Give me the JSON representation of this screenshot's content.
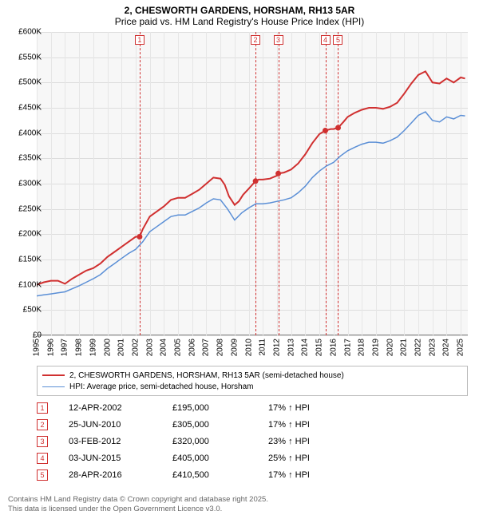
{
  "title": {
    "line1": "2, CHESWORTH GARDENS, HORSHAM, RH13 5AR",
    "line2": "Price paid vs. HM Land Registry's House Price Index (HPI)"
  },
  "chart": {
    "type": "line",
    "background_color": "#f7f7f7",
    "grid_color": "#dddddd",
    "vgrid_color": "#e6e6e6",
    "axis_color": "#888888",
    "y": {
      "min": 0,
      "max": 600000,
      "step": 50000,
      "labels": [
        "£0",
        "£50K",
        "£100K",
        "£150K",
        "£200K",
        "£250K",
        "£300K",
        "£350K",
        "£400K",
        "£450K",
        "£500K",
        "£550K",
        "£600K"
      ]
    },
    "x": {
      "min": 1995,
      "max": 2025.5,
      "labels": [
        "1995",
        "1996",
        "1997",
        "1998",
        "1999",
        "2000",
        "2001",
        "2002",
        "2003",
        "2004",
        "2005",
        "2006",
        "2007",
        "2008",
        "2009",
        "2010",
        "2011",
        "2012",
        "2013",
        "2014",
        "2015",
        "2016",
        "2017",
        "2018",
        "2019",
        "2020",
        "2021",
        "2022",
        "2023",
        "2024",
        "2025"
      ],
      "label_fontsize": 10
    },
    "series": [
      {
        "id": "property",
        "label": "2, CHESWORTH GARDENS, HORSHAM, RH13 5AR (semi-detached house)",
        "color": "#d03030",
        "width": 2,
        "data": [
          [
            1995,
            100000
          ],
          [
            1995.5,
            105000
          ],
          [
            1996,
            108000
          ],
          [
            1996.5,
            108000
          ],
          [
            1997,
            102000
          ],
          [
            1997.5,
            112000
          ],
          [
            1998,
            120000
          ],
          [
            1998.5,
            128000
          ],
          [
            1999,
            133000
          ],
          [
            1999.5,
            142000
          ],
          [
            2000,
            155000
          ],
          [
            2000.5,
            165000
          ],
          [
            2001,
            175000
          ],
          [
            2001.5,
            185000
          ],
          [
            2002,
            195000
          ],
          [
            2002.28,
            195000
          ],
          [
            2002.5,
            210000
          ],
          [
            2003,
            235000
          ],
          [
            2003.5,
            245000
          ],
          [
            2004,
            255000
          ],
          [
            2004.5,
            268000
          ],
          [
            2005,
            272000
          ],
          [
            2005.5,
            272000
          ],
          [
            2006,
            280000
          ],
          [
            2006.5,
            288000
          ],
          [
            2007,
            300000
          ],
          [
            2007.5,
            312000
          ],
          [
            2008,
            310000
          ],
          [
            2008.3,
            298000
          ],
          [
            2008.6,
            275000
          ],
          [
            2009,
            258000
          ],
          [
            2009.3,
            265000
          ],
          [
            2009.6,
            278000
          ],
          [
            2010,
            290000
          ],
          [
            2010.48,
            305000
          ],
          [
            2010.7,
            308000
          ],
          [
            2011,
            308000
          ],
          [
            2011.5,
            310000
          ],
          [
            2012,
            316000
          ],
          [
            2012.09,
            320000
          ],
          [
            2012.5,
            322000
          ],
          [
            2013,
            328000
          ],
          [
            2013.5,
            340000
          ],
          [
            2014,
            358000
          ],
          [
            2014.5,
            380000
          ],
          [
            2015,
            398000
          ],
          [
            2015.42,
            405000
          ],
          [
            2015.8,
            408000
          ],
          [
            2016,
            408000
          ],
          [
            2016.32,
            410500
          ],
          [
            2016.7,
            422000
          ],
          [
            2017,
            432000
          ],
          [
            2017.5,
            440000
          ],
          [
            2018,
            446000
          ],
          [
            2018.5,
            450000
          ],
          [
            2019,
            450000
          ],
          [
            2019.5,
            448000
          ],
          [
            2020,
            452000
          ],
          [
            2020.5,
            460000
          ],
          [
            2021,
            478000
          ],
          [
            2021.5,
            498000
          ],
          [
            2022,
            515000
          ],
          [
            2022.5,
            522000
          ],
          [
            2023,
            500000
          ],
          [
            2023.5,
            498000
          ],
          [
            2024,
            508000
          ],
          [
            2024.5,
            500000
          ],
          [
            2025,
            510000
          ],
          [
            2025.3,
            508000
          ]
        ]
      },
      {
        "id": "hpi",
        "label": "HPI: Average price, semi-detached house, Horsham",
        "color": "#5b8fd6",
        "width": 1.5,
        "data": [
          [
            1995,
            78000
          ],
          [
            1995.5,
            80000
          ],
          [
            1996,
            82000
          ],
          [
            1996.5,
            84000
          ],
          [
            1997,
            86000
          ],
          [
            1997.5,
            92000
          ],
          [
            1998,
            98000
          ],
          [
            1998.5,
            105000
          ],
          [
            1999,
            112000
          ],
          [
            1999.5,
            120000
          ],
          [
            2000,
            132000
          ],
          [
            2000.5,
            142000
          ],
          [
            2001,
            152000
          ],
          [
            2001.5,
            162000
          ],
          [
            2002,
            170000
          ],
          [
            2002.5,
            185000
          ],
          [
            2003,
            205000
          ],
          [
            2003.5,
            215000
          ],
          [
            2004,
            225000
          ],
          [
            2004.5,
            235000
          ],
          [
            2005,
            238000
          ],
          [
            2005.5,
            238000
          ],
          [
            2006,
            245000
          ],
          [
            2006.5,
            252000
          ],
          [
            2007,
            262000
          ],
          [
            2007.5,
            270000
          ],
          [
            2008,
            268000
          ],
          [
            2008.5,
            250000
          ],
          [
            2009,
            228000
          ],
          [
            2009.5,
            242000
          ],
          [
            2010,
            252000
          ],
          [
            2010.5,
            260000
          ],
          [
            2011,
            260000
          ],
          [
            2011.5,
            262000
          ],
          [
            2012,
            265000
          ],
          [
            2012.5,
            268000
          ],
          [
            2013,
            272000
          ],
          [
            2013.5,
            282000
          ],
          [
            2014,
            295000
          ],
          [
            2014.5,
            312000
          ],
          [
            2015,
            325000
          ],
          [
            2015.5,
            335000
          ],
          [
            2016,
            342000
          ],
          [
            2016.5,
            355000
          ],
          [
            2017,
            365000
          ],
          [
            2017.5,
            372000
          ],
          [
            2018,
            378000
          ],
          [
            2018.5,
            382000
          ],
          [
            2019,
            382000
          ],
          [
            2019.5,
            380000
          ],
          [
            2020,
            385000
          ],
          [
            2020.5,
            392000
          ],
          [
            2021,
            405000
          ],
          [
            2021.5,
            420000
          ],
          [
            2022,
            435000
          ],
          [
            2022.5,
            442000
          ],
          [
            2023,
            425000
          ],
          [
            2023.5,
            422000
          ],
          [
            2024,
            432000
          ],
          [
            2024.5,
            428000
          ],
          [
            2025,
            435000
          ],
          [
            2025.3,
            434000
          ]
        ]
      }
    ],
    "sales": [
      {
        "idx": "1",
        "year": 2002.28
      },
      {
        "idx": "2",
        "year": 2010.48
      },
      {
        "idx": "3",
        "year": 2012.09
      },
      {
        "idx": "4",
        "year": 2015.42
      },
      {
        "idx": "5",
        "year": 2016.32
      }
    ],
    "sale_line_color": "#d03030",
    "marker_color": "#d03030"
  },
  "legend": {
    "items": [
      {
        "color": "#d03030",
        "width": 2,
        "label": "2, CHESWORTH GARDENS, HORSHAM, RH13 5AR (semi-detached house)"
      },
      {
        "color": "#5b8fd6",
        "width": 1.5,
        "label": "HPI: Average price, semi-detached house, Horsham"
      }
    ]
  },
  "table": {
    "arrow": "↑",
    "suffix": "HPI",
    "rows": [
      {
        "idx": "1",
        "date": "12-APR-2002",
        "price": "£195,000",
        "pct": "17%"
      },
      {
        "idx": "2",
        "date": "25-JUN-2010",
        "price": "£305,000",
        "pct": "17%"
      },
      {
        "idx": "3",
        "date": "03-FEB-2012",
        "price": "£320,000",
        "pct": "23%"
      },
      {
        "idx": "4",
        "date": "03-JUN-2015",
        "price": "£405,000",
        "pct": "25%"
      },
      {
        "idx": "5",
        "date": "28-APR-2016",
        "price": "£410,500",
        "pct": "17%"
      }
    ]
  },
  "footer": {
    "line1": "Contains HM Land Registry data © Crown copyright and database right 2025.",
    "line2": "This data is licensed under the Open Government Licence v3.0."
  }
}
